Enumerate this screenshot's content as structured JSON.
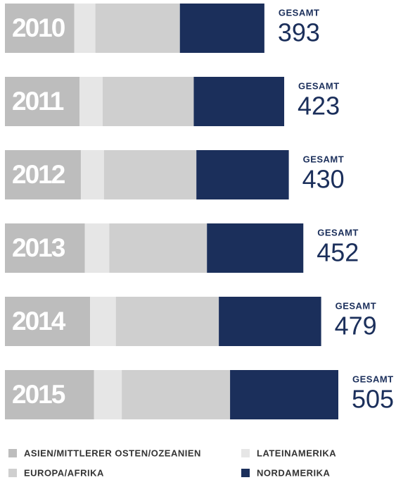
{
  "chart_data": {
    "type": "stacked-bar-horizontal",
    "categories": [
      "2010",
      "2011",
      "2012",
      "2013",
      "2014",
      "2015"
    ],
    "total_label": "GESAMT",
    "totals": [
      393,
      423,
      430,
      452,
      479,
      505
    ],
    "series": [
      {
        "name": "ASIEN/MITTLERER OSTEN/OZEANIEN",
        "color": "#bdbdbd",
        "values": [
          105,
          113,
          115,
          121,
          129,
          135
        ]
      },
      {
        "name": "LATEINAMERIKA",
        "color": "#e6e6e6",
        "values": [
          32,
          35,
          35,
          37,
          39,
          42
        ]
      },
      {
        "name": "EUROPA/AFRIKA",
        "color": "#cfcfcf",
        "values": [
          128,
          138,
          140,
          148,
          156,
          164
        ]
      },
      {
        "name": "NORDAMERIKA",
        "color": "#1b2f5b",
        "values": [
          128,
          137,
          140,
          146,
          155,
          164
        ]
      }
    ]
  }
}
